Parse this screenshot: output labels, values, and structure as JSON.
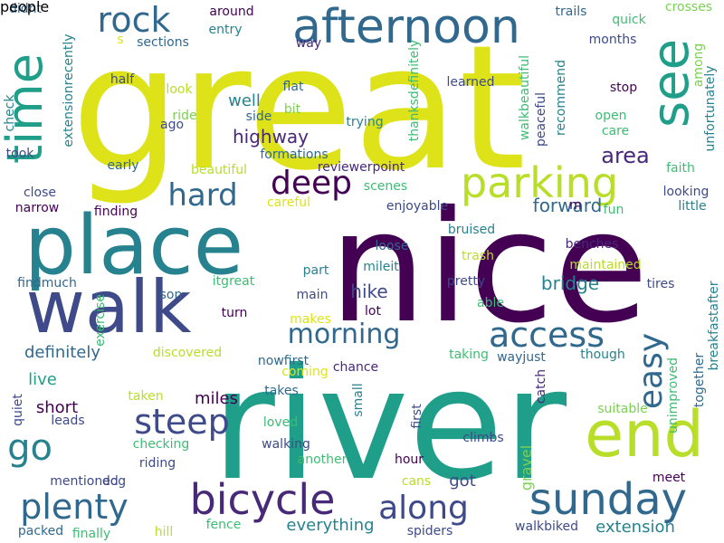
{
  "palette": {
    "yellow": "#dde318",
    "lime": "#b8de29",
    "green": "#7ad151",
    "seagreen": "#3ebc74",
    "teal": "#1f9e89",
    "steelteal": "#26828e",
    "blue": "#31688e",
    "indigo": "#3e4a89",
    "purple": "#482878",
    "darkpurple": "#440154"
  },
  "words": [
    {
      "text": "great",
      "color": "yellow"
    },
    {
      "text": "nice",
      "color": "darkpurple"
    },
    {
      "text": "river",
      "color": "teal"
    },
    {
      "text": "place",
      "color": "steelteal"
    },
    {
      "text": "walk",
      "color": "indigo"
    },
    {
      "text": "afternoon",
      "color": "blue"
    },
    {
      "text": "see",
      "color": "teal"
    },
    {
      "text": "time",
      "color": "teal"
    },
    {
      "text": "rock",
      "color": "blue"
    },
    {
      "text": "parking",
      "color": "lime"
    },
    {
      "text": "deep",
      "color": "darkpurple"
    },
    {
      "text": "hard",
      "color": "blue"
    },
    {
      "text": "end",
      "color": "lime"
    },
    {
      "text": "sunday",
      "color": "blue"
    },
    {
      "text": "bicycle",
      "color": "purple"
    },
    {
      "text": "steep",
      "color": "indigo"
    },
    {
      "text": "go",
      "color": "steelteal"
    },
    {
      "text": "plenty",
      "color": "blue"
    },
    {
      "text": "along",
      "color": "indigo"
    },
    {
      "text": "access",
      "color": "blue"
    },
    {
      "text": "morning",
      "color": "blue"
    },
    {
      "text": "easy",
      "color": "blue"
    },
    {
      "text": "area",
      "color": "purple"
    },
    {
      "text": "highway",
      "color": "purple"
    },
    {
      "text": "forward",
      "color": "blue"
    },
    {
      "text": "bridge",
      "color": "steelteal"
    },
    {
      "text": "hike",
      "color": "indigo"
    },
    {
      "text": "miles",
      "color": "darkpurple"
    },
    {
      "text": "definitely",
      "color": "blue"
    },
    {
      "text": "short",
      "color": "darkpurple"
    },
    {
      "text": "live",
      "color": "teal"
    },
    {
      "text": "well",
      "color": "steelteal"
    },
    {
      "text": "everything",
      "color": "steelteal"
    },
    {
      "text": "extension",
      "color": "steelteal"
    },
    {
      "text": "got",
      "color": "indigo"
    },
    {
      "text": "gravel",
      "color": "green"
    },
    {
      "text": "around",
      "color": "darkpurple"
    },
    {
      "text": "entry",
      "color": "steelteal"
    },
    {
      "text": "way",
      "color": "purple"
    },
    {
      "text": "trails",
      "color": "blue"
    },
    {
      "text": "quick",
      "color": "seagreen"
    },
    {
      "text": "crosses",
      "color": "green"
    },
    {
      "text": "sections",
      "color": "blue"
    },
    {
      "text": "months",
      "color": "indigo"
    },
    {
      "text": "among",
      "color": "green"
    },
    {
      "text": "didnt",
      "color": "blue"
    },
    {
      "text": "s",
      "color": "yellow"
    },
    {
      "text": "half",
      "color": "indigo"
    },
    {
      "text": "look",
      "color": "lime"
    },
    {
      "text": "ago",
      "color": "indigo"
    },
    {
      "text": "ride",
      "color": "green"
    },
    {
      "text": "side",
      "color": "blue"
    },
    {
      "text": "flat",
      "color": "blue"
    },
    {
      "text": "bit",
      "color": "green"
    },
    {
      "text": "trying",
      "color": "steelteal"
    },
    {
      "text": "learned",
      "color": "indigo"
    },
    {
      "text": "stop",
      "color": "darkpurple"
    },
    {
      "text": "open",
      "color": "seagreen"
    },
    {
      "text": "care",
      "color": "seagreen"
    },
    {
      "text": "check",
      "color": "steelteal"
    },
    {
      "text": "extensionrecently",
      "color": "steelteal"
    },
    {
      "text": "thanksdefinitely",
      "color": "seagreen"
    },
    {
      "text": "walkbeautiful",
      "color": "seagreen"
    },
    {
      "text": "peaceful",
      "color": "indigo"
    },
    {
      "text": "recommend",
      "color": "steelteal"
    },
    {
      "text": "unfortunately",
      "color": "steelteal"
    },
    {
      "text": "took",
      "color": "indigo"
    },
    {
      "text": "early",
      "color": "blue"
    },
    {
      "text": "formations",
      "color": "blue"
    },
    {
      "text": "reviewerpoint",
      "color": "purple"
    },
    {
      "text": "faith",
      "color": "seagreen"
    },
    {
      "text": "beautiful",
      "color": "lime"
    },
    {
      "text": "scenes",
      "color": "seagreen"
    },
    {
      "text": "looking",
      "color": "indigo"
    },
    {
      "text": "close",
      "color": "indigo"
    },
    {
      "text": "careful",
      "color": "yellow"
    },
    {
      "text": "narrow",
      "color": "darkpurple"
    },
    {
      "text": "finding",
      "color": "darkpurple"
    },
    {
      "text": "enjoyable",
      "color": "indigo"
    },
    {
      "text": "m",
      "color": "darkpurple"
    },
    {
      "text": "fun",
      "color": "seagreen"
    },
    {
      "text": "little",
      "color": "steelteal"
    },
    {
      "text": "bruised",
      "color": "steelteal"
    },
    {
      "text": "loose",
      "color": "blue"
    },
    {
      "text": "benches",
      "color": "purple"
    },
    {
      "text": "trash",
      "color": "lime"
    },
    {
      "text": "maintained",
      "color": "lime"
    },
    {
      "text": "mileit",
      "color": "steelteal"
    },
    {
      "text": "part",
      "color": "steelteal"
    },
    {
      "text": "findmuch",
      "color": "blue"
    },
    {
      "text": "itgreat",
      "color": "seagreen"
    },
    {
      "text": "son",
      "color": "blue"
    },
    {
      "text": "main",
      "color": "indigo"
    },
    {
      "text": "pretty",
      "color": "indigo"
    },
    {
      "text": "able",
      "color": "seagreen"
    },
    {
      "text": "tires",
      "color": "indigo"
    },
    {
      "text": "exercise",
      "color": "seagreen"
    },
    {
      "text": "turn",
      "color": "darkpurple"
    },
    {
      "text": "lot",
      "color": "darkpurple"
    },
    {
      "text": "makes",
      "color": "yellow"
    },
    {
      "text": "breakfastafter",
      "color": "steelteal"
    },
    {
      "text": "discovered",
      "color": "lime"
    },
    {
      "text": "taking",
      "color": "seagreen"
    },
    {
      "text": "though",
      "color": "steelteal"
    },
    {
      "text": "nowfirst",
      "color": "blue"
    },
    {
      "text": "wayjust",
      "color": "blue"
    },
    {
      "text": "coming",
      "color": "yellow"
    },
    {
      "text": "chance",
      "color": "purple"
    },
    {
      "text": "takes",
      "color": "blue"
    },
    {
      "text": "catch",
      "color": "purple"
    },
    {
      "text": "unimproved",
      "color": "seagreen"
    },
    {
      "text": "together",
      "color": "blue"
    },
    {
      "text": "suitable",
      "color": "green"
    },
    {
      "text": "quiet",
      "color": "indigo"
    },
    {
      "text": "taken",
      "color": "lime"
    },
    {
      "text": "leads",
      "color": "indigo"
    },
    {
      "text": "small",
      "color": "steelteal"
    },
    {
      "text": "loved",
      "color": "seagreen"
    },
    {
      "text": "first",
      "color": "indigo"
    },
    {
      "text": "checking",
      "color": "seagreen"
    },
    {
      "text": "walking",
      "color": "indigo"
    },
    {
      "text": "climbs",
      "color": "indigo"
    },
    {
      "text": "riding",
      "color": "indigo"
    },
    {
      "text": "another",
      "color": "seagreen"
    },
    {
      "text": "hour",
      "color": "darkpurple"
    },
    {
      "text": "meet",
      "color": "darkpurple"
    },
    {
      "text": "mentioned",
      "color": "indigo"
    },
    {
      "text": "dog",
      "color": "indigo"
    },
    {
      "text": "cans",
      "color": "lime"
    },
    {
      "text": "packed",
      "color": "blue"
    },
    {
      "text": "finally",
      "color": "seagreen"
    },
    {
      "text": "hill",
      "color": "lime"
    },
    {
      "text": "fence",
      "color": "seagreen"
    },
    {
      "text": "spiders",
      "color": "indigo"
    },
    {
      "text": "walkbiked",
      "color": "indigo"
    },
    {
      "text": "people",
      "color": "indigo"
    }
  ]
}
